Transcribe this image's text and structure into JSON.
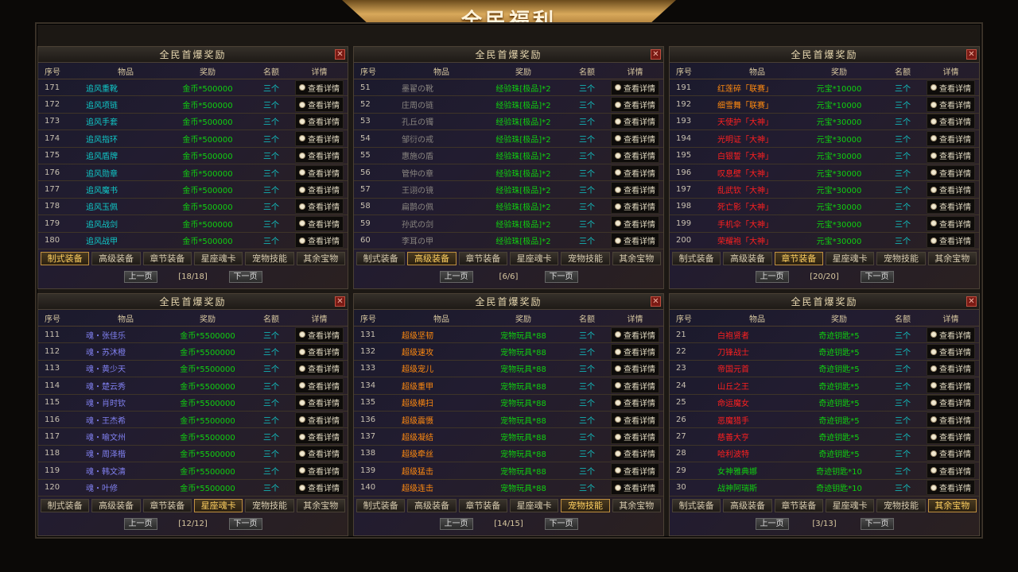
{
  "banner_title": "全民福利",
  "colors": {
    "reward": "#10d010",
    "quota": "#10c8c8",
    "active_tab": "#ffd060"
  },
  "headers": {
    "no": "序号",
    "item": "物品",
    "reward": "奖励",
    "quota": "名额",
    "detail": "详情"
  },
  "detail_label": "查看详情",
  "detail_icon": "magnifier-icon",
  "prev_label": "上一页",
  "next_label": "下一页",
  "close_label": "✕",
  "tabs": [
    "制式装备",
    "高级装备",
    "章节装备",
    "星座魂卡",
    "宠物技能",
    "其余宝物"
  ],
  "panels": [
    {
      "title": "全民首爆奖励",
      "active_tab": 0,
      "page": "[18/18]",
      "rows": [
        [
          "171",
          "追风重靴",
          "金币*500000",
          "三个",
          "cyan"
        ],
        [
          "172",
          "追风项链",
          "金币*500000",
          "三个",
          "cyan"
        ],
        [
          "173",
          "追风手套",
          "金币*500000",
          "三个",
          "cyan"
        ],
        [
          "174",
          "追风指环",
          "金币*500000",
          "三个",
          "cyan"
        ],
        [
          "175",
          "追风盾牌",
          "金币*500000",
          "三个",
          "cyan"
        ],
        [
          "176",
          "追风勋章",
          "金币*500000",
          "三个",
          "cyan"
        ],
        [
          "177",
          "追风魔书",
          "金币*500000",
          "三个",
          "cyan"
        ],
        [
          "178",
          "追风玉佩",
          "金币*500000",
          "三个",
          "cyan"
        ],
        [
          "179",
          "追风战剑",
          "金币*500000",
          "三个",
          "cyan"
        ],
        [
          "180",
          "追风战甲",
          "金币*500000",
          "三个",
          "cyan"
        ]
      ]
    },
    {
      "title": "全民首爆奖励",
      "active_tab": 1,
      "page": "[6/6]",
      "rows": [
        [
          "51",
          "墨翟の靴",
          "经验珠[极品]*2",
          "三个",
          "gray"
        ],
        [
          "52",
          "庄周の链",
          "经验珠[极品]*2",
          "三个",
          "gray"
        ],
        [
          "53",
          "孔丘の镯",
          "经验珠[极品]*2",
          "三个",
          "gray"
        ],
        [
          "54",
          "邹衍の戒",
          "经验珠[极品]*2",
          "三个",
          "gray"
        ],
        [
          "55",
          "惠施の盾",
          "经验珠[极品]*2",
          "三个",
          "gray"
        ],
        [
          "56",
          "管仲の章",
          "经验珠[极品]*2",
          "三个",
          "gray"
        ],
        [
          "57",
          "王诩の镜",
          "经验珠[极品]*2",
          "三个",
          "gray"
        ],
        [
          "58",
          "扁鹊の佩",
          "经验珠[极品]*2",
          "三个",
          "gray"
        ],
        [
          "59",
          "孙武の剑",
          "经验珠[极品]*2",
          "三个",
          "gray"
        ],
        [
          "60",
          "李耳の甲",
          "经验珠[极品]*2",
          "三个",
          "gray"
        ]
      ]
    },
    {
      "title": "全民首爆奖励",
      "active_tab": 2,
      "page": "[20/20]",
      "rows": [
        [
          "191",
          "红莲碎「联赛」",
          "元宝*10000",
          "三个",
          "orange"
        ],
        [
          "192",
          "细雪舞「联赛」",
          "元宝*10000",
          "三个",
          "orange"
        ],
        [
          "193",
          "天使护「大神」",
          "元宝*30000",
          "三个",
          "red"
        ],
        [
          "194",
          "光明证「大神」",
          "元宝*30000",
          "三个",
          "red"
        ],
        [
          "195",
          "白银誓「大神」",
          "元宝*30000",
          "三个",
          "red"
        ],
        [
          "196",
          "叹息壁「大神」",
          "元宝*30000",
          "三个",
          "red"
        ],
        [
          "197",
          "乱武钦「大神」",
          "元宝*30000",
          "三个",
          "red"
        ],
        [
          "198",
          "死亡影「大神」",
          "元宝*30000",
          "三个",
          "red"
        ],
        [
          "199",
          "手机伞「大神」",
          "元宝*30000",
          "三个",
          "red"
        ],
        [
          "200",
          "荣耀袍「大神」",
          "元宝*30000",
          "三个",
          "red"
        ]
      ]
    },
    {
      "title": "全民首爆奖励",
      "active_tab": 3,
      "page": "[12/12]",
      "rows": [
        [
          "111",
          "魂・张佳乐",
          "金币*5500000",
          "三个",
          "blue"
        ],
        [
          "112",
          "魂・苏沐橙",
          "金币*5500000",
          "三个",
          "blue"
        ],
        [
          "113",
          "魂・黄少天",
          "金币*5500000",
          "三个",
          "blue"
        ],
        [
          "114",
          "魂・楚云秀",
          "金币*5500000",
          "三个",
          "blue"
        ],
        [
          "115",
          "魂・肖时钦",
          "金币*5500000",
          "三个",
          "blue"
        ],
        [
          "116",
          "魂・王杰希",
          "金币*5500000",
          "三个",
          "blue"
        ],
        [
          "117",
          "魂・喻文州",
          "金币*5500000",
          "三个",
          "blue"
        ],
        [
          "118",
          "魂・周泽楷",
          "金币*5500000",
          "三个",
          "blue"
        ],
        [
          "119",
          "魂・韩文清",
          "金币*5500000",
          "三个",
          "blue"
        ],
        [
          "120",
          "魂・叶修",
          "金币*5500000",
          "三个",
          "blue"
        ]
      ]
    },
    {
      "title": "全民首爆奖励",
      "active_tab": 4,
      "page": "[14/15]",
      "rows": [
        [
          "131",
          "超级坚韧",
          "宠物玩具*88",
          "三个",
          "orange"
        ],
        [
          "132",
          "超级速攻",
          "宠物玩具*88",
          "三个",
          "orange"
        ],
        [
          "133",
          "超级宠儿",
          "宠物玩具*88",
          "三个",
          "orange"
        ],
        [
          "134",
          "超级重甲",
          "宠物玩具*88",
          "三个",
          "orange"
        ],
        [
          "135",
          "超级横扫",
          "宠物玩具*88",
          "三个",
          "orange"
        ],
        [
          "136",
          "超级震慑",
          "宠物玩具*88",
          "三个",
          "orange"
        ],
        [
          "137",
          "超级凝结",
          "宠物玩具*88",
          "三个",
          "orange"
        ],
        [
          "138",
          "超级牵丝",
          "宠物玩具*88",
          "三个",
          "orange"
        ],
        [
          "139",
          "超级猛击",
          "宠物玩具*88",
          "三个",
          "orange"
        ],
        [
          "140",
          "超级连击",
          "宠物玩具*88",
          "三个",
          "orange"
        ]
      ]
    },
    {
      "title": "全民首爆奖励",
      "active_tab": 5,
      "page": "[3/13]",
      "rows": [
        [
          "21",
          "白袍贤者",
          "奇迹钥匙*5",
          "三个",
          "red"
        ],
        [
          "22",
          "刀锋战士",
          "奇迹钥匙*5",
          "三个",
          "red"
        ],
        [
          "23",
          "帝国元首",
          "奇迹钥匙*5",
          "三个",
          "red"
        ],
        [
          "24",
          "山丘之王",
          "奇迹钥匙*5",
          "三个",
          "red"
        ],
        [
          "25",
          "命运魔女",
          "奇迹钥匙*5",
          "三个",
          "red"
        ],
        [
          "26",
          "恶魔猎手",
          "奇迹钥匙*5",
          "三个",
          "red"
        ],
        [
          "27",
          "慈善大亨",
          "奇迹钥匙*5",
          "三个",
          "red"
        ],
        [
          "28",
          "哈利波特",
          "奇迹钥匙*5",
          "三个",
          "red"
        ],
        [
          "29",
          "女神雅典娜",
          "奇迹钥匙*10",
          "三个",
          "green"
        ],
        [
          "30",
          "战神阿瑞斯",
          "奇迹钥匙*10",
          "三个",
          "green"
        ]
      ]
    }
  ]
}
